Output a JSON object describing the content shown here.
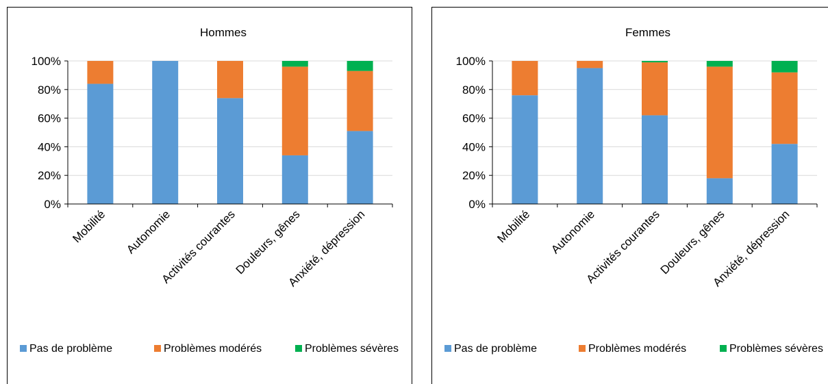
{
  "colors": {
    "pas_de_probleme": "#5B9BD5",
    "problemes_moderes": "#ED7D31",
    "problemes_severes": "#00B050",
    "grid": "#D9D9D9",
    "axis": "#000000"
  },
  "chart_data": [
    {
      "type": "bar",
      "stacked": true,
      "title": "Hommes",
      "categories": [
        "Mobilité",
        "Autonomie",
        "Activités courantes",
        "Douleurs, gênes",
        "Anxiété, dépression"
      ],
      "y_ticks": [
        "0%",
        "20%",
        "40%",
        "60%",
        "80%",
        "100%"
      ],
      "ylim": [
        0,
        100
      ],
      "grid": true,
      "legend_position": "bottom",
      "series": [
        {
          "name": "Pas de problème",
          "color_key": "pas_de_probleme",
          "values": [
            84,
            100,
            74,
            34,
            51
          ]
        },
        {
          "name": "Problèmes modérés",
          "color_key": "problemes_moderes",
          "values": [
            16,
            0,
            26,
            62,
            42
          ]
        },
        {
          "name": "Problèmes sévères",
          "color_key": "problemes_severes",
          "values": [
            0,
            0,
            0,
            4,
            7
          ]
        }
      ]
    },
    {
      "type": "bar",
      "stacked": true,
      "title": "Femmes",
      "categories": [
        "Mobilité",
        "Autonomie",
        "Activités courantes",
        "Douleurs, gênes",
        "Anxiété, dépression"
      ],
      "y_ticks": [
        "0%",
        "20%",
        "40%",
        "60%",
        "80%",
        "100%"
      ],
      "ylim": [
        0,
        100
      ],
      "grid": true,
      "legend_position": "bottom",
      "series": [
        {
          "name": "Pas de problème",
          "color_key": "pas_de_probleme",
          "values": [
            76,
            95,
            62,
            18,
            42
          ]
        },
        {
          "name": "Problèmes modérés",
          "color_key": "problemes_moderes",
          "values": [
            24,
            5,
            37,
            78,
            50
          ]
        },
        {
          "name": "Problèmes sévères",
          "color_key": "problemes_severes",
          "values": [
            0,
            0,
            1,
            4,
            8
          ]
        }
      ]
    }
  ]
}
